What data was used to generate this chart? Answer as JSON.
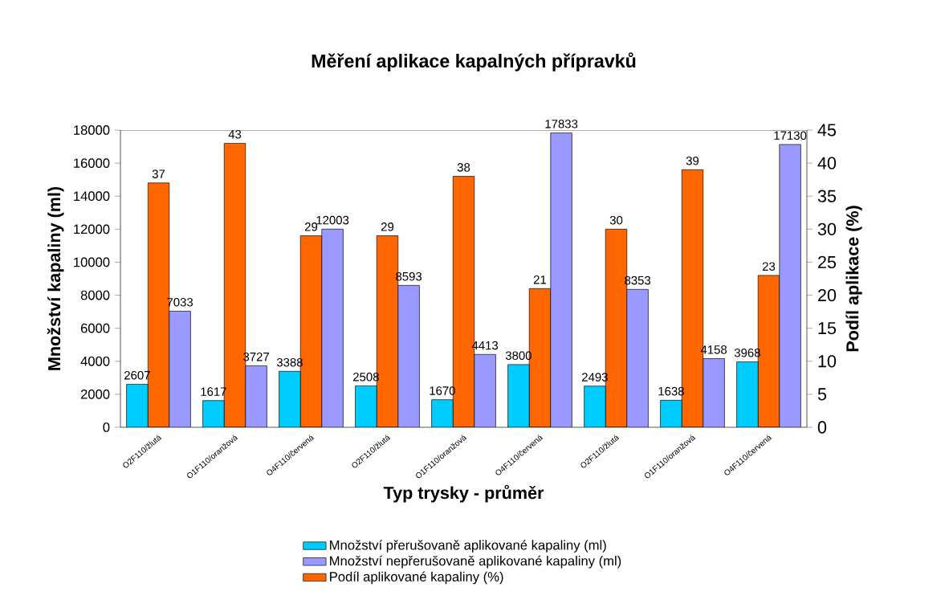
{
  "chart_data": {
    "type": "bar",
    "title": "Měření  aplikace kapalných přípravků",
    "xlabel": "Typ trysky - průměr",
    "ylabel": "Množství kapaliny (ml)",
    "y2label": "Podíl aplikace (%)",
    "categories": [
      "O2F110/žlutá",
      "O1F110/oranžová",
      "O4F110/červená",
      "O2F110/žlutá",
      "O1F110/oranžová",
      "O4F110/červená",
      "O2F110/žlutá",
      "O1F110/oranžová",
      "O4F110/červená"
    ],
    "series": [
      {
        "name": "Množství přerušovaně aplikované kapaliny (ml)",
        "color": "#00ccff",
        "values": [
          2607,
          1617,
          3388,
          2508,
          1670,
          3800,
          2493,
          1638,
          3968
        ]
      },
      {
        "name": "Množství nepřerušovaně aplikované kapaliny  (ml)",
        "color": "#9999ff",
        "values": [
          7033,
          3727,
          12003,
          8593,
          4413,
          17833,
          8353,
          4158,
          17130
        ]
      },
      {
        "name": "Podíl aplikované kapaliny  (%)",
        "color": "#ff6600",
        "axis": "y2",
        "values": [
          37,
          43,
          29,
          29,
          38,
          21,
          30,
          39,
          23
        ]
      }
    ],
    "ylim": [
      0,
      18000
    ],
    "yticks": [
      0,
      2000,
      4000,
      6000,
      8000,
      10000,
      12000,
      14000,
      16000,
      18000
    ],
    "y2lim": [
      0,
      45
    ],
    "y2ticks": [
      0,
      5,
      10,
      15,
      20,
      25,
      30,
      35,
      40,
      45
    ],
    "data_labels": true,
    "legend": "bottom",
    "grid": false
  }
}
